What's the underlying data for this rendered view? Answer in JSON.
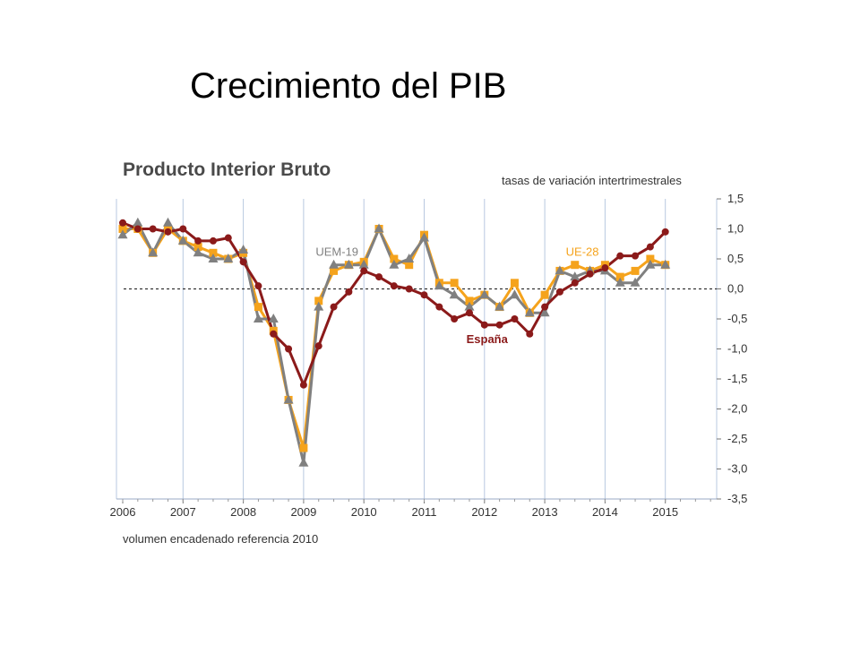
{
  "slide": {
    "title": "Crecimiento del PIB"
  },
  "chart_data": {
    "type": "line",
    "title": "Producto Interior Bruto",
    "subtitle": "tasas de variación intertrimestrales",
    "footnote": "volumen encadenado referencia 2010",
    "x_labels": [
      "2006",
      "2007",
      "2008",
      "2009",
      "2010",
      "2011",
      "2012",
      "2013",
      "2014",
      "2015"
    ],
    "y_ticks": [
      "1,5",
      "1,0",
      "0,5",
      "0,0",
      "-0,5",
      "-1,0",
      "-1,5",
      "-2,0",
      "-2,5",
      "-3,0",
      "-3,5"
    ],
    "ylim": [
      -3.5,
      1.5
    ],
    "xlim": [
      2006,
      2016
    ],
    "zero_line": "dashed",
    "grid": "vertical lines at years",
    "series": [
      {
        "name": "España",
        "color": "#8b1a1a",
        "marker": "circle",
        "x": [
          2006.0,
          2006.25,
          2006.5,
          2006.75,
          2007.0,
          2007.25,
          2007.5,
          2007.75,
          2008.0,
          2008.25,
          2008.5,
          2008.75,
          2009.0,
          2009.25,
          2009.5,
          2009.75,
          2010.0,
          2010.25,
          2010.5,
          2010.75,
          2011.0,
          2011.25,
          2011.5,
          2011.75,
          2012.0,
          2012.25,
          2012.5,
          2012.75,
          2013.0,
          2013.25,
          2013.5,
          2013.75,
          2014.0,
          2014.25,
          2014.5,
          2014.75,
          2015.0
        ],
        "y": [
          1.1,
          1.0,
          1.0,
          0.95,
          1.0,
          0.8,
          0.8,
          0.85,
          0.45,
          0.05,
          -0.75,
          -1.0,
          -1.6,
          -0.95,
          -0.3,
          -0.05,
          0.3,
          0.2,
          0.05,
          0.0,
          -0.1,
          -0.3,
          -0.5,
          -0.4,
          -0.6,
          -0.6,
          -0.5,
          -0.75,
          -0.3,
          -0.05,
          0.1,
          0.25,
          0.35,
          0.55,
          0.55,
          0.7,
          0.95
        ]
      },
      {
        "name": "UE-28",
        "color": "#f5a31c",
        "marker": "square",
        "x": [
          2006.0,
          2006.25,
          2006.5,
          2006.75,
          2007.0,
          2007.25,
          2007.5,
          2007.75,
          2008.0,
          2008.25,
          2008.5,
          2008.75,
          2009.0,
          2009.25,
          2009.5,
          2009.75,
          2010.0,
          2010.25,
          2010.5,
          2010.75,
          2011.0,
          2011.25,
          2011.5,
          2011.75,
          2012.0,
          2012.25,
          2012.5,
          2012.75,
          2013.0,
          2013.25,
          2013.5,
          2013.75,
          2014.0,
          2014.25,
          2014.5,
          2014.75,
          2015.0
        ],
        "y": [
          1.0,
          1.0,
          0.6,
          1.0,
          0.8,
          0.7,
          0.6,
          0.5,
          0.6,
          -0.3,
          -0.7,
          -1.85,
          -2.65,
          -0.2,
          0.3,
          0.4,
          0.45,
          1.0,
          0.5,
          0.4,
          0.9,
          0.1,
          0.1,
          -0.2,
          -0.1,
          -0.3,
          0.1,
          -0.4,
          -0.1,
          0.3,
          0.4,
          0.3,
          0.4,
          0.2,
          0.3,
          0.5,
          0.4
        ]
      },
      {
        "name": "UEM-19",
        "color": "#808080",
        "marker": "triangle",
        "x": [
          2006.0,
          2006.25,
          2006.5,
          2006.75,
          2007.0,
          2007.25,
          2007.5,
          2007.75,
          2008.0,
          2008.25,
          2008.5,
          2008.75,
          2009.0,
          2009.25,
          2009.5,
          2009.75,
          2010.0,
          2010.25,
          2010.5,
          2010.75,
          2011.0,
          2011.25,
          2011.5,
          2011.75,
          2012.0,
          2012.25,
          2012.5,
          2012.75,
          2013.0,
          2013.25,
          2013.5,
          2013.75,
          2014.0,
          2014.25,
          2014.5,
          2014.75,
          2015.0
        ],
        "y": [
          0.9,
          1.1,
          0.6,
          1.1,
          0.8,
          0.6,
          0.5,
          0.5,
          0.65,
          -0.5,
          -0.5,
          -1.85,
          -2.9,
          -0.3,
          0.4,
          0.4,
          0.4,
          1.0,
          0.4,
          0.5,
          0.85,
          0.05,
          -0.1,
          -0.3,
          -0.1,
          -0.3,
          -0.1,
          -0.4,
          -0.4,
          0.3,
          0.2,
          0.3,
          0.3,
          0.1,
          0.1,
          0.4,
          0.4
        ]
      }
    ]
  }
}
